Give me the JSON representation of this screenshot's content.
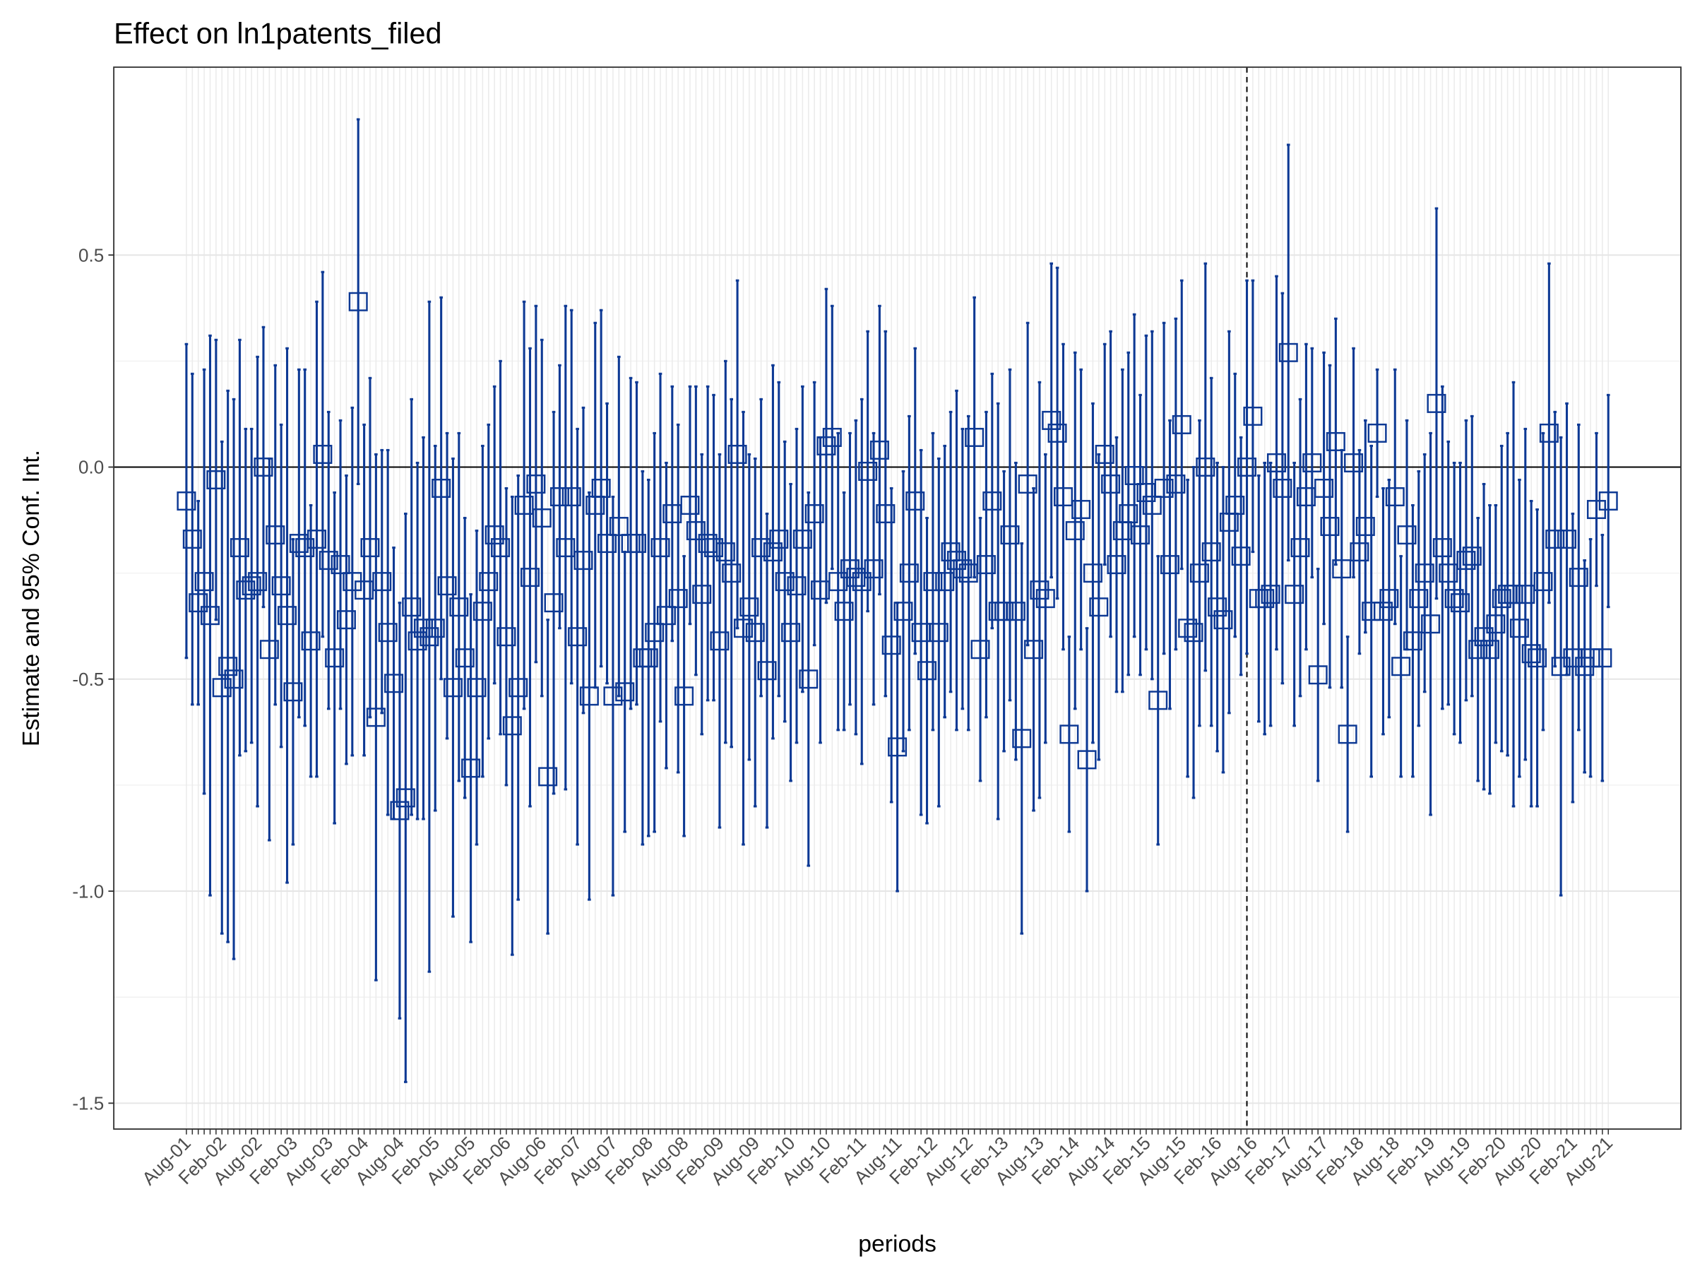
{
  "chart_data": {
    "type": "errorbar",
    "title": "Effect on ln1patents_filed",
    "x_label": "periods",
    "y_label": "Estimate and 95% Conf. Int.",
    "color": "#0d3994",
    "ylim": [
      -1.561,
      0.943
    ],
    "yticks": [
      {
        "value": -1.5,
        "label": "-1.5"
      },
      {
        "value": -1.0,
        "label": "-1.0"
      },
      {
        "value": -0.5,
        "label": "-0.5"
      },
      {
        "value": 0,
        "label": "0.0"
      },
      {
        "value": 0.5,
        "label": "0.5"
      }
    ],
    "grid": true,
    "hline": 0,
    "vline": 179,
    "categories": [
      "Aug-01",
      null,
      null,
      null,
      null,
      null,
      "Feb-02",
      null,
      null,
      null,
      null,
      null,
      "Aug-02",
      null,
      null,
      null,
      null,
      null,
      "Feb-03",
      null,
      null,
      null,
      null,
      null,
      "Aug-03",
      null,
      null,
      null,
      null,
      null,
      "Feb-04",
      null,
      null,
      null,
      null,
      null,
      "Aug-04",
      null,
      null,
      null,
      null,
      null,
      "Feb-05",
      null,
      null,
      null,
      null,
      null,
      "Aug-05",
      null,
      null,
      null,
      null,
      null,
      "Feb-06",
      null,
      null,
      null,
      null,
      null,
      "Aug-06",
      null,
      null,
      null,
      null,
      null,
      "Feb-07",
      null,
      null,
      null,
      null,
      null,
      "Aug-07",
      null,
      null,
      null,
      null,
      null,
      "Feb-08",
      null,
      null,
      null,
      null,
      null,
      "Aug-08",
      null,
      null,
      null,
      null,
      null,
      "Feb-09",
      null,
      null,
      null,
      null,
      null,
      "Aug-09",
      null,
      null,
      null,
      null,
      null,
      "Feb-10",
      null,
      null,
      null,
      null,
      null,
      "Aug-10",
      null,
      null,
      null,
      null,
      null,
      "Feb-11",
      null,
      null,
      null,
      null,
      null,
      "Aug-11",
      null,
      null,
      null,
      null,
      null,
      "Feb-12",
      null,
      null,
      null,
      null,
      null,
      "Aug-12",
      null,
      null,
      null,
      null,
      null,
      "Feb-13",
      null,
      null,
      null,
      null,
      null,
      "Aug-13",
      null,
      null,
      null,
      null,
      null,
      "Feb-14",
      null,
      null,
      null,
      null,
      null,
      "Aug-14",
      null,
      null,
      null,
      null,
      null,
      "Feb-15",
      null,
      null,
      null,
      null,
      null,
      "Aug-15",
      null,
      null,
      null,
      null,
      null,
      "Feb-16",
      null,
      null,
      null,
      null,
      null,
      "Aug-16",
      null,
      null,
      null,
      null,
      null,
      "Feb-17",
      null,
      null,
      null,
      null,
      null,
      "Aug-17",
      null,
      null,
      null,
      null,
      null,
      "Feb-18",
      null,
      null,
      null,
      null,
      null,
      "Aug-18",
      null,
      null,
      null,
      null,
      null,
      "Feb-19",
      null,
      null,
      null,
      null,
      null,
      "Aug-19",
      null,
      null,
      null,
      null,
      null,
      "Feb-20",
      null,
      null,
      null,
      null,
      null,
      "Aug-20",
      null,
      null,
      null,
      null,
      null,
      "Feb-21",
      null,
      null,
      null,
      null,
      null,
      "Aug-21"
    ],
    "values": [
      -0.08,
      -0.17,
      -0.32,
      -0.27,
      -0.35,
      -0.03,
      -0.52,
      -0.47,
      -0.5,
      -0.19,
      -0.29,
      -0.28,
      -0.27,
      0.0,
      -0.43,
      -0.16,
      -0.28,
      -0.35,
      -0.53,
      -0.18,
      -0.19,
      -0.41,
      -0.17,
      0.03,
      -0.22,
      -0.45,
      -0.23,
      -0.36,
      -0.27,
      0.39,
      -0.29,
      -0.19,
      -0.59,
      -0.27,
      -0.39,
      -0.51,
      -0.81,
      -0.78,
      -0.33,
      -0.41,
      -0.38,
      -0.4,
      -0.38,
      -0.05,
      -0.28,
      -0.52,
      -0.33,
      -0.45,
      -0.71,
      -0.52,
      -0.34,
      -0.27,
      -0.16,
      -0.19,
      -0.4,
      -0.61,
      -0.52,
      -0.09,
      -0.26,
      -0.04,
      -0.12,
      -0.73,
      -0.32,
      -0.07,
      -0.19,
      -0.07,
      -0.4,
      -0.22,
      -0.54,
      -0.09,
      -0.05,
      -0.18,
      -0.54,
      -0.14,
      -0.53,
      -0.18,
      -0.18,
      -0.45,
      -0.45,
      -0.39,
      -0.19,
      -0.35,
      -0.11,
      -0.31,
      -0.54,
      -0.09,
      -0.15,
      -0.3,
      -0.18,
      -0.19,
      -0.41,
      -0.2,
      -0.25,
      0.03,
      -0.38,
      -0.33,
      -0.39,
      -0.19,
      -0.48,
      -0.2,
      -0.17,
      -0.27,
      -0.39,
      -0.28,
      -0.17,
      -0.5,
      -0.11,
      -0.29,
      0.05,
      0.07,
      -0.27,
      -0.34,
      -0.24,
      -0.26,
      -0.27,
      -0.01,
      -0.24,
      0.04,
      -0.11,
      -0.42,
      -0.66,
      -0.34,
      -0.25,
      -0.08,
      -0.39,
      -0.48,
      -0.27,
      -0.39,
      -0.27,
      -0.2,
      -0.22,
      -0.24,
      -0.25,
      0.07,
      -0.43,
      -0.23,
      -0.08,
      -0.34,
      -0.34,
      -0.16,
      -0.34,
      -0.64,
      -0.04,
      -0.43,
      -0.29,
      -0.31,
      0.11,
      0.08,
      -0.07,
      -0.63,
      -0.15,
      -0.1,
      -0.69,
      -0.25,
      -0.33,
      0.03,
      -0.04,
      -0.23,
      -0.15,
      -0.11,
      -0.02,
      -0.16,
      -0.06,
      -0.09,
      -0.55,
      -0.05,
      -0.23,
      -0.04,
      0.1,
      -0.38,
      -0.39,
      -0.25,
      0.0,
      -0.2,
      -0.33,
      -0.36,
      -0.13,
      -0.09,
      -0.21,
      0.0,
      0.12,
      -0.31,
      -0.31,
      -0.3,
      0.01,
      -0.05,
      0.27,
      -0.3,
      -0.19,
      -0.07,
      0.01,
      -0.49,
      -0.05,
      -0.14,
      0.06,
      -0.24,
      -0.63,
      0.01,
      -0.2,
      -0.14,
      -0.34,
      0.08,
      -0.34,
      -0.31,
      -0.07,
      -0.47,
      -0.16,
      -0.41,
      -0.31,
      -0.25,
      -0.37,
      0.15,
      -0.19,
      -0.25,
      -0.31,
      -0.32,
      -0.22,
      -0.21,
      -0.43,
      -0.4,
      -0.43,
      -0.37,
      -0.31,
      -0.3,
      -0.3,
      -0.38,
      -0.3,
      -0.44,
      -0.45,
      -0.27,
      0.08,
      -0.17,
      -0.47,
      -0.17,
      -0.45,
      -0.26,
      -0.47,
      -0.45,
      -0.1,
      -0.45,
      -0.08
    ],
    "errors": [
      0.37,
      0.39,
      0.24,
      0.5,
      0.66,
      0.33,
      0.58,
      0.65,
      0.66,
      0.49,
      0.38,
      0.37,
      0.53,
      0.33,
      0.45,
      0.4,
      0.38,
      0.63,
      0.36,
      0.41,
      0.42,
      0.32,
      0.56,
      0.43,
      0.35,
      0.39,
      0.34,
      0.34,
      0.41,
      0.43,
      0.39,
      0.4,
      0.62,
      0.31,
      0.43,
      0.32,
      0.49,
      0.67,
      0.49,
      0.42,
      0.45,
      0.79,
      0.43,
      0.45,
      0.36,
      0.54,
      0.41,
      0.33,
      0.41,
      0.37,
      0.39,
      0.37,
      0.35,
      0.44,
      0.35,
      0.54,
      0.5,
      0.48,
      0.54,
      0.42,
      0.42,
      0.37,
      0.45,
      0.31,
      0.57,
      0.44,
      0.49,
      0.36,
      0.48,
      0.43,
      0.42,
      0.33,
      0.47,
      0.4,
      0.33,
      0.39,
      0.38,
      0.44,
      0.42,
      0.47,
      0.41,
      0.36,
      0.3,
      0.41,
      0.33,
      0.28,
      0.34,
      0.33,
      0.37,
      0.36,
      0.44,
      0.45,
      0.41,
      0.41,
      0.51,
      0.36,
      0.41,
      0.35,
      0.37,
      0.44,
      0.37,
      0.33,
      0.35,
      0.37,
      0.36,
      0.44,
      0.31,
      0.36,
      0.37,
      0.31,
      0.35,
      0.28,
      0.32,
      0.37,
      0.43,
      0.33,
      0.32,
      0.34,
      0.43,
      0.37,
      0.34,
      0.33,
      0.37,
      0.36,
      0.43,
      0.36,
      0.35,
      0.41,
      0.32,
      0.33,
      0.4,
      0.33,
      0.37,
      0.33,
      0.31,
      0.36,
      0.3,
      0.49,
      0.33,
      0.39,
      0.35,
      0.46,
      0.38,
      0.38,
      0.49,
      0.34,
      0.37,
      0.39,
      0.36,
      0.23,
      0.42,
      0.33,
      0.31,
      0.4,
      0.36,
      0.26,
      0.36,
      0.3,
      0.38,
      0.38,
      0.38,
      0.33,
      0.37,
      0.41,
      0.34,
      0.39,
      0.34,
      0.39,
      0.34,
      0.35,
      0.39,
      0.36,
      0.48,
      0.41,
      0.34,
      0.36,
      0.45,
      0.31,
      0.28,
      0.44,
      0.32,
      0.29,
      0.32,
      0.31,
      0.44,
      0.46,
      0.49,
      0.31,
      0.35,
      0.36,
      0.27,
      0.25,
      0.32,
      0.38,
      0.29,
      0.28,
      0.23,
      0.27,
      0.24,
      0.25,
      0.39,
      0.15,
      0.29,
      0.28,
      0.3,
      0.26,
      0.27,
      0.32,
      0.3,
      0.28,
      0.45,
      0.46,
      0.38,
      0.31,
      0.32,
      0.33,
      0.33,
      0.33,
      0.31,
      0.36,
      0.34,
      0.28,
      0.36,
      0.38,
      0.5,
      0.35,
      0.39,
      0.36,
      0.35,
      0.35,
      0.4,
      0.3,
      0.54,
      0.32,
      0.34,
      0.36,
      0.25,
      0.28,
      0.18,
      0.29,
      0.25
    ]
  }
}
